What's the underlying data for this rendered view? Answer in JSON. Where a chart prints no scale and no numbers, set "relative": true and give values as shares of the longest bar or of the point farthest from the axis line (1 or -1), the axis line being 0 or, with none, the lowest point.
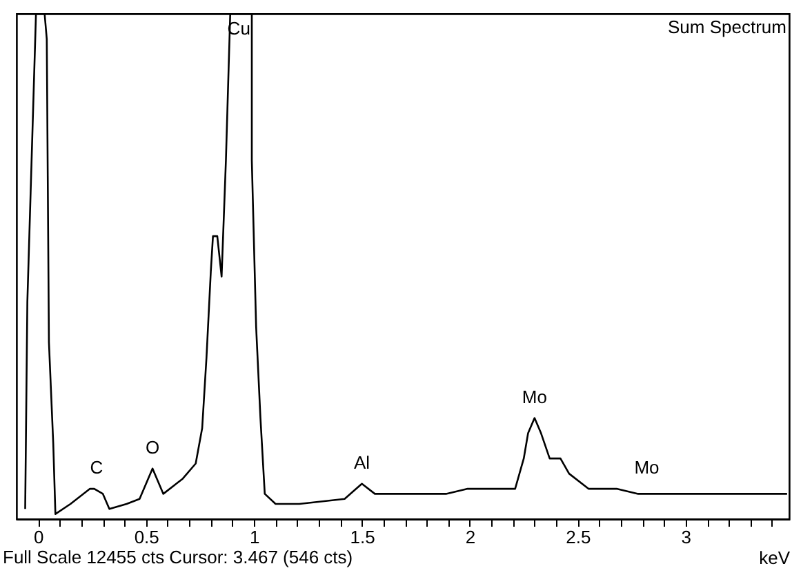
{
  "chart_data": {
    "type": "line",
    "title": "Sum Spectrum",
    "xlabel": "keV",
    "relative": true,
    "color": "#000000",
    "x": [
      -0.06,
      -0.05,
      -0.01,
      0.03,
      0.04,
      0.05,
      0.07,
      0.08,
      0.15,
      0.24,
      0.26,
      0.3,
      0.33,
      0.41,
      0.47,
      0.53,
      0.58,
      0.67,
      0.73,
      0.76,
      0.78,
      0.8,
      0.81,
      0.83,
      0.85,
      0.87,
      0.89,
      0.99,
      0.99,
      1.01,
      1.03,
      1.05,
      1.1,
      1.21,
      1.42,
      1.5,
      1.56,
      1.69,
      1.89,
      1.99,
      2.21,
      2.25,
      2.27,
      2.3,
      2.33,
      2.37,
      2.42,
      2.46,
      2.55,
      2.68,
      2.78,
      3.0,
      3.47
    ],
    "values": [
      0.02,
      0.43,
      1,
      1,
      0.95,
      0.35,
      0.15,
      0.01,
      0.03,
      0.06,
      0.06,
      0.05,
      0.02,
      0.03,
      0.04,
      0.1,
      0.05,
      0.08,
      0.11,
      0.18,
      0.32,
      0.49,
      0.56,
      0.56,
      0.48,
      0.71,
      1,
      1,
      0.71,
      0.38,
      0.2,
      0.05,
      0.03,
      0.03,
      0.04,
      0.07,
      0.05,
      0.05,
      0.05,
      0.06,
      0.06,
      0.12,
      0.17,
      0.2,
      0.17,
      0.12,
      0.12,
      0.09,
      0.06,
      0.06,
      0.05,
      0.05,
      0.05
    ],
    "xlim": [
      -0.1,
      3.48
    ],
    "xticks": [
      0,
      {
        "value": 0.1,
        "label": null
      },
      {
        "value": 0.2,
        "label": null
      },
      {
        "value": 0.3,
        "label": null
      },
      {
        "value": 0.4,
        "label": null
      },
      0.5,
      {
        "value": 0.6,
        "label": null
      },
      {
        "value": 0.7,
        "label": null
      },
      {
        "value": 0.8,
        "label": null
      },
      {
        "value": 0.9,
        "label": null
      },
      1,
      {
        "value": 1.1,
        "label": null
      },
      {
        "value": 1.2,
        "label": null
      },
      {
        "value": 1.3,
        "label": null
      },
      {
        "value": 1.4,
        "label": null
      },
      1.5,
      {
        "value": 1.6,
        "label": null
      },
      {
        "value": 1.7,
        "label": null
      },
      {
        "value": 1.8,
        "label": null
      },
      {
        "value": 1.9,
        "label": null
      },
      2,
      {
        "value": 2.1,
        "label": null
      },
      {
        "value": 2.2,
        "label": null
      },
      {
        "value": 2.3,
        "label": null
      },
      {
        "value": 2.4,
        "label": null
      },
      2.5,
      {
        "value": 2.6,
        "label": null
      },
      {
        "value": 2.7,
        "label": null
      },
      {
        "value": 2.8,
        "label": null
      },
      {
        "value": 2.9,
        "label": null
      },
      3,
      {
        "value": 3.1,
        "label": null
      },
      {
        "value": 3.2,
        "label": null
      },
      {
        "value": 3.3,
        "label": null
      },
      {
        "value": 3.4,
        "label": null
      }
    ],
    "grid": false,
    "annotations": [
      {
        "text": "C",
        "x": 0.27,
        "y": 0.06
      },
      {
        "text": "O",
        "x": 0.53,
        "y": 0.1
      },
      {
        "text": "Cu",
        "x": 0.93,
        "y": 1
      },
      {
        "text": "Al",
        "x": 1.5,
        "y": 0.07
      },
      {
        "text": "Mo",
        "x": 2.3,
        "y": 0.2
      },
      {
        "text": "Mo",
        "x": 2.82,
        "y": 0.06
      },
      "Full Scale 12455 cts Cursor: 3.467  (546 cts)"
    ]
  }
}
